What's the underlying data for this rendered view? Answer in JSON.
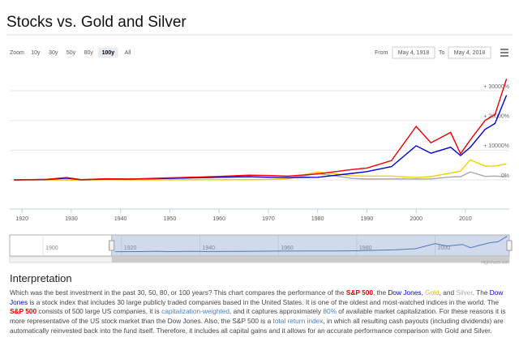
{
  "header": {
    "title": "Stocks vs. Gold and Silver"
  },
  "controls": {
    "zoom_label": "Zoom",
    "buttons": [
      {
        "label": "10y"
      },
      {
        "label": "30y"
      },
      {
        "label": "50y"
      },
      {
        "label": "80y"
      },
      {
        "label": "100y",
        "selected": true
      },
      {
        "label": "All"
      }
    ],
    "from_label": "From",
    "from_value": "May 4, 1918",
    "to_label": "To",
    "to_value": "May 4, 2018"
  },
  "chart_data": {
    "type": "line",
    "x": [
      1918.34,
      1925,
      1929,
      1932,
      1937,
      1942,
      1950,
      1960,
      1966,
      1970,
      1974,
      1980,
      1987,
      1990,
      1995,
      2000,
      2003,
      2007,
      2009,
      2011,
      2014,
      2016,
      2018.34
    ],
    "series": [
      {
        "name": "S&P 500",
        "color": "#ee0000",
        "values": [
          0,
          200,
          800,
          100,
          400,
          300,
          700,
          1200,
          1600,
          1500,
          1300,
          2000,
          3500,
          4000,
          6500,
          18000,
          12500,
          16000,
          8800,
          13500,
          20000,
          22000,
          34000
        ]
      },
      {
        "name": "Dow Jones",
        "color": "#0000dd",
        "values": [
          0,
          150,
          600,
          80,
          300,
          250,
          500,
          900,
          1100,
          900,
          800,
          900,
          2200,
          2800,
          4500,
          11500,
          9000,
          11000,
          8200,
          11000,
          17000,
          19000,
          28500
        ]
      },
      {
        "name": "Gold",
        "color": "#f2d100",
        "values": [
          0,
          0,
          0,
          0,
          70,
          70,
          70,
          70,
          70,
          100,
          600,
          2700,
          1400,
          1300,
          1300,
          800,
          1100,
          2300,
          3000,
          6800,
          4600,
          4700,
          5400
        ]
      },
      {
        "name": "Silver",
        "color": "#a8a8a8",
        "values": [
          0,
          50,
          20,
          -40,
          30,
          10,
          40,
          80,
          120,
          150,
          400,
          2200,
          500,
          300,
          350,
          300,
          350,
          1000,
          1100,
          2700,
          1200,
          1300,
          1100
        ]
      }
    ],
    "xlim": [
      1917.5,
      2018.9
    ],
    "xticks": [
      1920,
      1930,
      1940,
      1950,
      1960,
      1970,
      1980,
      1990,
      2000,
      2010
    ],
    "ylim": [
      -9800,
      37100
    ],
    "yticks": [
      {
        "value": 0,
        "label": "0%"
      },
      {
        "value": 10000,
        "label": "+ 10000%"
      },
      {
        "value": 20000,
        "label": "+ 20000%"
      },
      {
        "value": 30000,
        "label": "+ 30000%"
      }
    ],
    "grid": true
  },
  "navigator": {
    "xlim": [
      1891.5,
      2018.9
    ],
    "xticks": [
      1900,
      1920,
      1940,
      1960,
      1980,
      2000
    ],
    "color": "#4572a7",
    "credits": "Highcharts.com"
  },
  "article": {
    "heading": "Interpretation",
    "segments": [
      {
        "text": "Which was the best investment in the past 30, 50, 80, or 100 years? This chart compares the performance of the "
      },
      {
        "text": "S&P 500",
        "kind": "sp"
      },
      {
        "text": ", the "
      },
      {
        "text": "Dow Jones",
        "kind": "dj"
      },
      {
        "text": ", "
      },
      {
        "text": "Gold",
        "kind": "gold"
      },
      {
        "text": ", and "
      },
      {
        "text": "Silver",
        "kind": "silver"
      },
      {
        "text": ". The "
      },
      {
        "text": "Dow Jones",
        "kind": "dj"
      },
      {
        "text": " is a stock index that includes 30 large publicly traded companies based in the United States. It is one of the oldest and most-watched indices in the world. The "
      },
      {
        "text": "S&P 500",
        "kind": "sp"
      },
      {
        "text": " consists of 500 large US companies, it is "
      },
      {
        "text": "capitalization-weighted",
        "kind": "link"
      },
      {
        "text": ", and it captures approximately "
      },
      {
        "text": "80%",
        "kind": "link"
      },
      {
        "text": " of available market capitalization. For these reasons it is more representative of the US stock market than the Dow Jones. Also, the S&P 500 is a "
      },
      {
        "text": "total return index",
        "kind": "link"
      },
      {
        "text": ", in which all resulting cash payouts (including dividends) are automatically reinvested back into the fund itself. Therefore, it includes all capital gains and it allows for an accurate performance comparison with Gold and Silver."
      }
    ]
  }
}
